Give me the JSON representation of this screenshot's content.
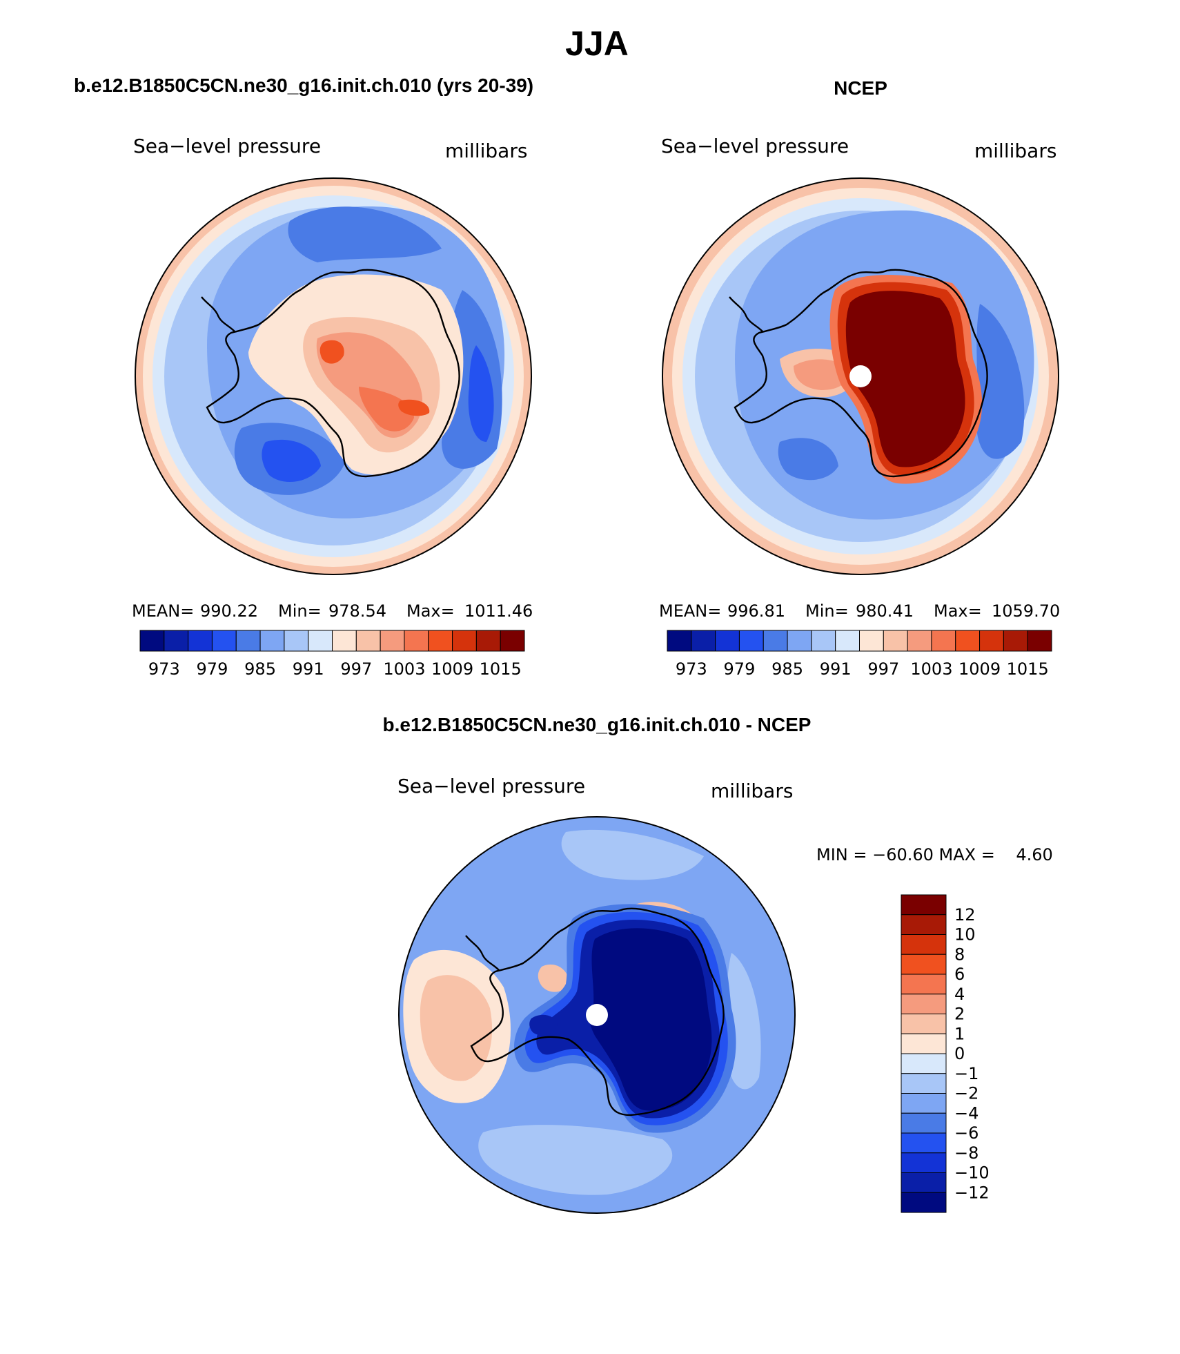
{
  "figure": {
    "title": "JJA"
  },
  "panels": [
    {
      "id": "model",
      "header": "b.e12.B1850C5CN.ne30_g16.init.ch.010 (yrs 20-39)",
      "left_label": "Sea−level pressure",
      "right_label": "millibars",
      "stats": {
        "mean_label": "MEAN=",
        "mean": "990.22",
        "min_label": "Min=",
        "min": "978.54",
        "max_label": "Max=",
        "max": "1011.46"
      },
      "colorbar_ticks": [
        "973",
        "979",
        "985",
        "991",
        "997",
        "1003",
        "1009",
        "1015"
      ]
    },
    {
      "id": "obs",
      "header": "NCEP",
      "left_label": "Sea−level pressure",
      "right_label": "millibars",
      "stats": {
        "mean_label": "MEAN=",
        "mean": "996.81",
        "min_label": "Min=",
        "min": "980.41",
        "max_label": "Max=",
        "max": "1059.70"
      },
      "colorbar_ticks": [
        "973",
        "979",
        "985",
        "991",
        "997",
        "1003",
        "1009",
        "1015"
      ]
    },
    {
      "id": "diff",
      "header": "b.e12.B1850C5CN.ne30_g16.init.ch.010 - NCEP",
      "left_label": "Sea−level pressure",
      "right_label": "millibars",
      "minmax": "MIN = −60.60 MAX =    4.60",
      "colorbar_ticks": [
        "12",
        "10",
        "8",
        "6",
        "4",
        "2",
        "1",
        "0",
        "−1",
        "−2",
        "−4",
        "−6",
        "−8",
        "−10",
        "−12"
      ]
    }
  ],
  "colors": {
    "abs_palette": [
      "#000a80",
      "#0a1fa8",
      "#1333d6",
      "#2452f0",
      "#4a7be6",
      "#7ea6f3",
      "#a8c6f7",
      "#d8e8fb",
      "#fde6d6",
      "#f8c2a8",
      "#f59b7e",
      "#f47550",
      "#f0511f",
      "#d5330c",
      "#a81a06",
      "#7a0000"
    ],
    "diff_palette": [
      "#7a0000",
      "#a81a06",
      "#d5330c",
      "#f0511f",
      "#f47550",
      "#f59b7e",
      "#f8c2a8",
      "#fde6d6",
      "#d8e8fb",
      "#a8c6f7",
      "#7ea6f3",
      "#4a7be6",
      "#2452f0",
      "#1333d6",
      "#0a1fa8",
      "#000a80"
    ],
    "coastline": "#000000"
  }
}
